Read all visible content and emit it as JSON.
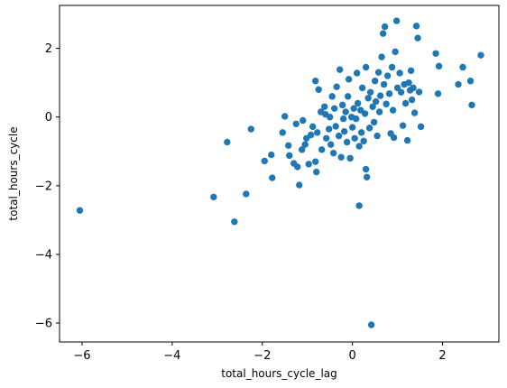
{
  "chart_data": {
    "type": "scatter",
    "xlabel": "total_hours_cycle_lag",
    "ylabel": "total_hours_cycle",
    "xlim": [
      -6.5,
      3.25
    ],
    "ylim": [
      -6.55,
      3.25
    ],
    "xticks": [
      -6,
      -4,
      -2,
      0,
      2
    ],
    "yticks": [
      -6,
      -4,
      -2,
      0,
      2
    ],
    "xtick_labels": [
      "−6",
      "−4",
      "−2",
      "0",
      "2"
    ],
    "ytick_labels": [
      "−6",
      "−4",
      "−2",
      "0",
      "2"
    ],
    "grid": false,
    "marker_color": "#1f77b4",
    "points": [
      [
        -6.05,
        -2.72
      ],
      [
        -3.08,
        -2.33
      ],
      [
        -2.62,
        -3.05
      ],
      [
        -2.36,
        -2.24
      ],
      [
        -2.78,
        -0.73
      ],
      [
        -2.25,
        -0.35
      ],
      [
        -1.95,
        -1.28
      ],
      [
        -1.78,
        -1.77
      ],
      [
        -1.8,
        -1.1
      ],
      [
        -1.55,
        -0.45
      ],
      [
        -1.5,
        0.02
      ],
      [
        -1.42,
        -0.83
      ],
      [
        -1.4,
        -1.12
      ],
      [
        -1.3,
        -1.35
      ],
      [
        -1.22,
        -1.45
      ],
      [
        -1.25,
        -0.2
      ],
      [
        -1.18,
        -1.98
      ],
      [
        -1.12,
        -0.95
      ],
      [
        -1.05,
        -0.8
      ],
      [
        -1.1,
        -0.1
      ],
      [
        -1.02,
        -0.62
      ],
      [
        -0.97,
        -1.37
      ],
      [
        -0.92,
        -0.52
      ],
      [
        -0.88,
        -0.28
      ],
      [
        -0.82,
        -1.3
      ],
      [
        -0.8,
        -1.6
      ],
      [
        -0.78,
        -0.45
      ],
      [
        -0.82,
        1.05
      ],
      [
        -0.75,
        0.8
      ],
      [
        -0.7,
        0.15
      ],
      [
        -0.68,
        -0.95
      ],
      [
        -0.62,
        0.3
      ],
      [
        -0.6,
        0.08
      ],
      [
        -0.58,
        -0.62
      ],
      [
        -0.52,
        -0.35
      ],
      [
        -0.5,
        0.0
      ],
      [
        -0.48,
        -0.8
      ],
      [
        -0.45,
        0.6
      ],
      [
        -0.42,
        -1.05
      ],
      [
        -0.4,
        0.25
      ],
      [
        -0.37,
        -0.27
      ],
      [
        -0.35,
        0.88
      ],
      [
        -0.3,
        -0.55
      ],
      [
        -0.28,
        1.38
      ],
      [
        -0.25,
        -1.17
      ],
      [
        -0.22,
        0.35
      ],
      [
        -0.2,
        -0.05
      ],
      [
        -0.18,
        -0.42
      ],
      [
        -0.15,
        0.15
      ],
      [
        -0.12,
        -0.73
      ],
      [
        -0.1,
        0.6
      ],
      [
        -0.08,
        1.1
      ],
      [
        -0.05,
        -1.2
      ],
      [
        -0.02,
        0.0
      ],
      [
        0.0,
        -0.3
      ],
      [
        0.03,
        0.25
      ],
      [
        0.05,
        -0.62
      ],
      [
        0.08,
        -0.05
      ],
      [
        0.1,
        1.28
      ],
      [
        0.12,
        0.4
      ],
      [
        0.15,
        -0.85
      ],
      [
        0.15,
        -2.58
      ],
      [
        0.18,
        0.2
      ],
      [
        0.2,
        -0.45
      ],
      [
        0.22,
        0.85
      ],
      [
        0.25,
        -0.7
      ],
      [
        0.28,
        0.1
      ],
      [
        0.3,
        1.45
      ],
      [
        0.3,
        -1.52
      ],
      [
        0.32,
        -1.75
      ],
      [
        0.35,
        0.55
      ],
      [
        0.38,
        -0.32
      ],
      [
        0.4,
        0.72
      ],
      [
        0.42,
        -6.05
      ],
      [
        0.45,
        0.3
      ],
      [
        0.48,
        -0.15
      ],
      [
        0.5,
        1.05
      ],
      [
        0.52,
        0.45
      ],
      [
        0.55,
        -0.55
      ],
      [
        0.58,
        1.3
      ],
      [
        0.6,
        0.15
      ],
      [
        0.62,
        0.62
      ],
      [
        0.65,
        1.75
      ],
      [
        0.68,
        2.43
      ],
      [
        0.7,
        0.95
      ],
      [
        0.72,
        2.63
      ],
      [
        0.75,
        0.38
      ],
      [
        0.78,
        1.2
      ],
      [
        0.82,
        0.68
      ],
      [
        0.85,
        -0.48
      ],
      [
        0.88,
        1.45
      ],
      [
        0.9,
        0.2
      ],
      [
        0.92,
        -0.6
      ],
      [
        0.95,
        1.9
      ],
      [
        0.98,
        2.8
      ],
      [
        1.0,
        0.85
      ],
      [
        1.05,
        1.28
      ],
      [
        1.08,
        0.72
      ],
      [
        1.12,
        -0.25
      ],
      [
        1.15,
        0.95
      ],
      [
        1.18,
        0.4
      ],
      [
        1.22,
        -0.68
      ],
      [
        1.25,
        1.0
      ],
      [
        1.28,
        0.78
      ],
      [
        1.3,
        1.35
      ],
      [
        1.32,
        0.5
      ],
      [
        1.35,
        0.85
      ],
      [
        1.38,
        0.12
      ],
      [
        1.42,
        2.65
      ],
      [
        1.45,
        2.3
      ],
      [
        1.48,
        0.73
      ],
      [
        1.52,
        -0.28
      ],
      [
        1.85,
        1.85
      ],
      [
        1.9,
        0.68
      ],
      [
        1.92,
        1.48
      ],
      [
        2.35,
        0.95
      ],
      [
        2.45,
        1.45
      ],
      [
        2.62,
        1.05
      ],
      [
        2.65,
        0.35
      ],
      [
        2.85,
        1.8
      ]
    ]
  }
}
